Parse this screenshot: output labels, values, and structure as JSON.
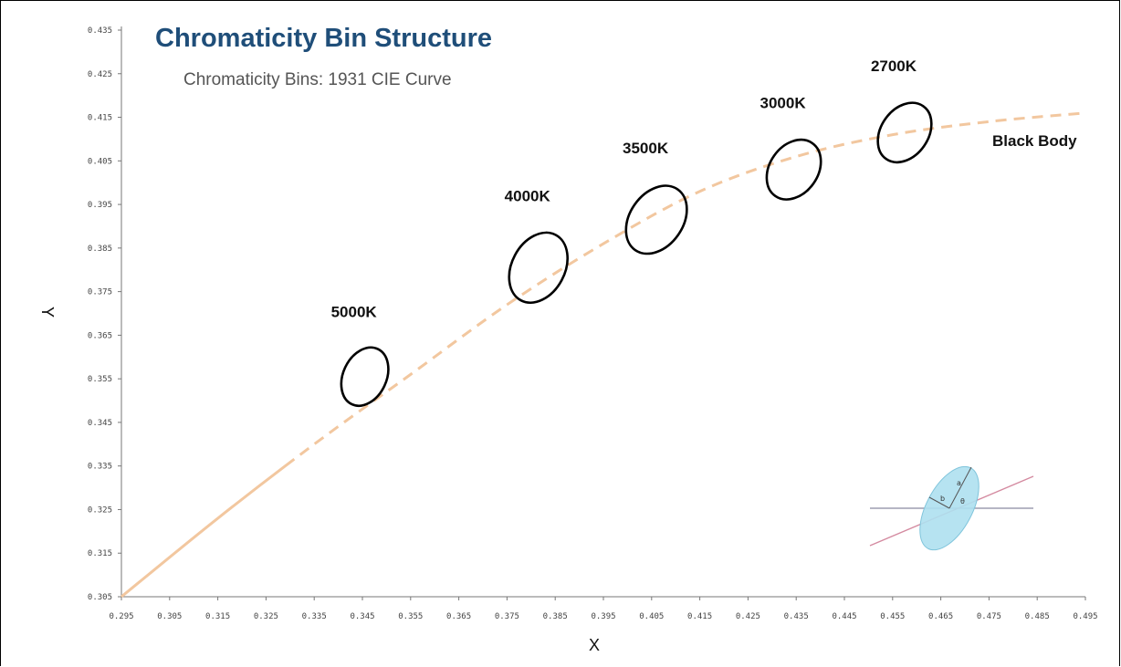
{
  "chart_data": {
    "type": "line",
    "title": "Chromaticity Bin Structure",
    "subtitle": "Chromaticity Bins: 1931 CIE Curve",
    "xlabel": "X",
    "ylabel": "Y",
    "xlim": [
      0.295,
      0.495
    ],
    "ylim": [
      0.305,
      0.435
    ],
    "x_ticks": [
      "0.295",
      "0.305",
      "0.315",
      "0.325",
      "0.335",
      "0.345",
      "0.355",
      "0.365",
      "0.375",
      "0.385",
      "0.395",
      "0.405",
      "0.415",
      "0.425",
      "0.435",
      "0.445",
      "0.455",
      "0.465",
      "0.475",
      "0.485",
      "0.495"
    ],
    "y_ticks": [
      "0.305",
      "0.315",
      "0.325",
      "0.335",
      "0.345",
      "0.355",
      "0.365",
      "0.375",
      "0.385",
      "0.395",
      "0.405",
      "0.415",
      "0.425",
      "0.435"
    ],
    "series": [
      {
        "name": "Black Body",
        "color": "#f2c79f",
        "points": [
          [
            0.295,
            0.305
          ],
          [
            0.315,
            0.323
          ],
          [
            0.335,
            0.34
          ],
          [
            0.355,
            0.356
          ],
          [
            0.375,
            0.372
          ],
          [
            0.395,
            0.386
          ],
          [
            0.415,
            0.398
          ],
          [
            0.435,
            0.406
          ],
          [
            0.455,
            0.411
          ],
          [
            0.475,
            0.414
          ],
          [
            0.495,
            0.416
          ]
        ]
      }
    ],
    "bins": [
      {
        "label": "5000K",
        "cx": 0.3455,
        "cy": 0.3555,
        "w": 0.009,
        "h": 0.014,
        "angle": 25
      },
      {
        "label": "4000K",
        "cx": 0.3815,
        "cy": 0.3805,
        "w": 0.011,
        "h": 0.017,
        "angle": 28
      },
      {
        "label": "3500K",
        "cx": 0.406,
        "cy": 0.3915,
        "w": 0.011,
        "h": 0.017,
        "angle": 35
      },
      {
        "label": "3000K",
        "cx": 0.4345,
        "cy": 0.403,
        "w": 0.01,
        "h": 0.0148,
        "angle": 35
      },
      {
        "label": "2700K",
        "cx": 0.4575,
        "cy": 0.4115,
        "w": 0.0098,
        "h": 0.0148,
        "angle": 35
      }
    ],
    "grid": false,
    "legend": "none"
  },
  "inset_symbols": [
    "a",
    "b",
    "θ"
  ],
  "colors": {
    "ellipse_stroke": "#000000",
    "inset_fill": "#aee0ef",
    "inset_line_pink": "#d48aa0",
    "inset_line_gray": "#8a8aa0"
  }
}
